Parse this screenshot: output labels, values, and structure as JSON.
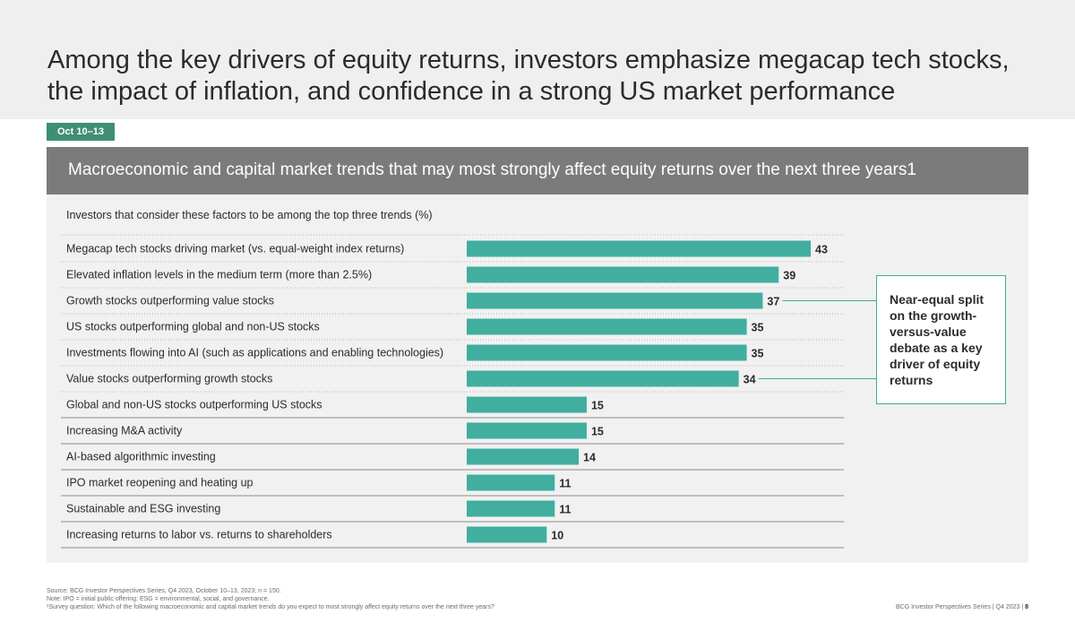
{
  "title": "Among the key drivers of equity returns, investors emphasize megacap tech stocks, the impact of inflation, and confidence in a strong US market performance",
  "date_badge": "Oct 10–13",
  "panel_title": "Macroeconomic and capital market trends that may most strongly affect equity returns over the next three years1",
  "callout": "Near-equal split on the growth-versus-value debate as a key driver of equity returns",
  "footer": {
    "source": "Source: BCG Investor Perspectives Series, Q4 2023, October 10–13, 2023; n = 150.",
    "note": "Note: IPO = initial public offering; ESG = environmental, social, and governance.",
    "survey": "¹Survey question: Which of the following macroeconomic and capital market trends do you expect to most strongly affect equity returns over the next three years?",
    "series_label": "BCG Investor Perspectives Series | Q4 2023 | ",
    "page_number": "8"
  },
  "colors": {
    "bar": "#41ae9f",
    "accent": "#3f8f74",
    "callout_border": "#3fae8a"
  },
  "chart_data": {
    "type": "bar",
    "orientation": "horizontal",
    "title": "Macroeconomic and capital market trends that may most strongly affect equity returns over the next three years1",
    "subtitle": "Investors that consider these factors to be among the top three trends (%)",
    "xlabel": "",
    "ylabel": "",
    "xlim": [
      0,
      43
    ],
    "grid": false,
    "categories": [
      "Megacap tech stocks driving market (vs. equal-weight index returns)",
      "Elevated inflation levels in the medium term (more than 2.5%)",
      "Growth stocks outperforming value stocks",
      "US stocks outperforming global and non-US stocks",
      "Investments flowing into AI (such as applications and enabling technologies)",
      "Value stocks outperforming growth stocks",
      "Global and non-US stocks outperforming US stocks",
      "Increasing M&A activity",
      "AI-based algorithmic investing",
      "IPO market reopening and heating up",
      "Sustainable and ESG investing",
      "Increasing returns to labor vs. returns to shareholders"
    ],
    "values": [
      43,
      39,
      37,
      35,
      35,
      34,
      15,
      15,
      14,
      11,
      11,
      10
    ],
    "highlighted": [
      2,
      5
    ]
  }
}
